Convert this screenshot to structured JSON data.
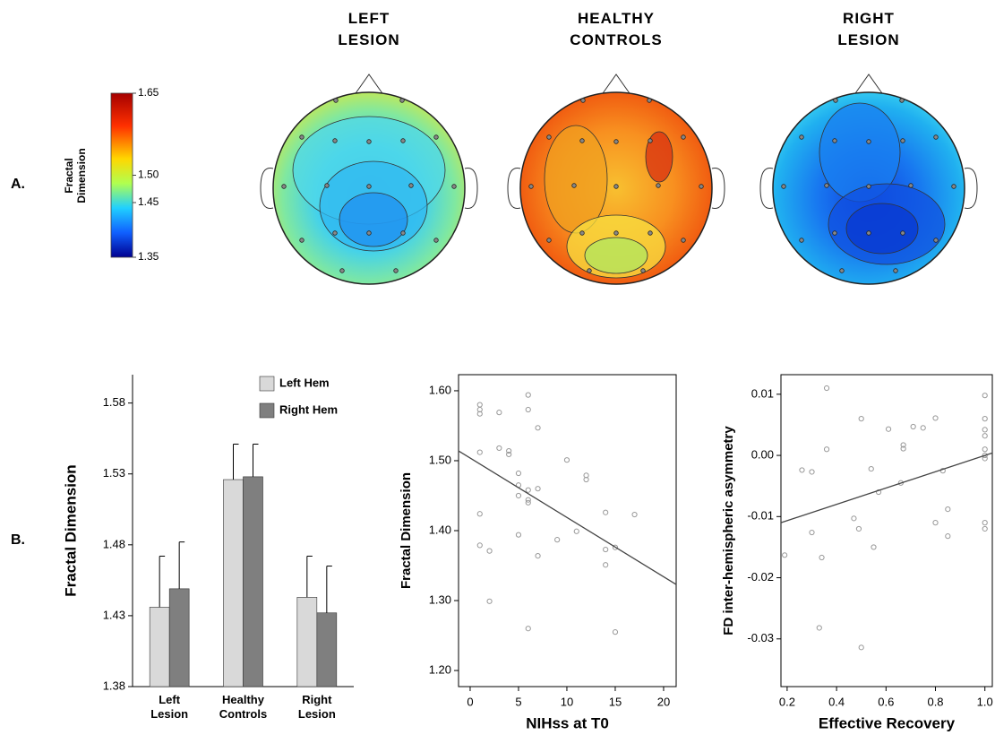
{
  "panel_labels": [
    "A.",
    "B."
  ],
  "topomaps": {
    "titles": [
      "LEFT LESION",
      "HEALTHY CONTROLS",
      "RIGHT LESION"
    ],
    "colorbar": {
      "label": "Fractal Dimension",
      "lim": [
        1.35,
        1.65
      ],
      "ticks": [
        1.65,
        {
          "value": 1.5,
          "label": "1.50"
        },
        1.45,
        1.35
      ]
    }
  },
  "chart_data": [
    {
      "type": "bar",
      "ylabel": "Fractal Dimension",
      "categories": [
        "Left Lesion",
        "Healthy Controls",
        "Right Lesion"
      ],
      "series": [
        {
          "name": "Left Hem",
          "color": "#d9d9d9",
          "values": [
            1.436,
            1.526,
            1.443
          ],
          "errors": [
            0.036,
            0.025,
            0.029
          ]
        },
        {
          "name": "Right Hem",
          "color": "#7f7f7f",
          "values": [
            1.449,
            1.528,
            1.432
          ],
          "errors": [
            0.033,
            0.023,
            0.033
          ]
        }
      ],
      "ylim": [
        1.38,
        1.6
      ],
      "yticks": [
        1.38,
        1.43,
        1.48,
        1.53,
        1.58
      ],
      "legend": "top-right"
    },
    {
      "type": "scatter",
      "xlabel": "NIHss at T0",
      "ylabel": "Fractal Dimension",
      "color": "#999999",
      "x": [
        1,
        1,
        1,
        3,
        6,
        6,
        7,
        4,
        4,
        1,
        3,
        5,
        5,
        5,
        6,
        6,
        7,
        6,
        10,
        12,
        12,
        1,
        1,
        2,
        2,
        5,
        7,
        9,
        11,
        14,
        17,
        14,
        14,
        15,
        6,
        15
      ],
      "y": [
        1.58,
        1.573,
        1.567,
        1.569,
        1.594,
        1.573,
        1.547,
        1.514,
        1.509,
        1.512,
        1.518,
        1.482,
        1.465,
        1.45,
        1.458,
        1.444,
        1.46,
        1.44,
        1.501,
        1.479,
        1.473,
        1.424,
        1.379,
        1.371,
        1.299,
        1.394,
        1.364,
        1.387,
        1.399,
        1.426,
        1.423,
        1.373,
        1.351,
        1.376,
        1.26,
        1.255
      ],
      "fit": {
        "x": [
          -1.2,
          21.3
        ],
        "y": [
          1.514,
          1.323
        ]
      },
      "xlim": [
        -1.2,
        21.3
      ],
      "xticks": [
        0,
        5,
        10,
        15,
        20
      ],
      "ylim": [
        1.177,
        1.623
      ],
      "yticks": [
        {
          "value": 1.2,
          "label": "1.20"
        },
        {
          "value": 1.3,
          "label": "1.30"
        },
        {
          "value": 1.4,
          "label": "1.40"
        },
        {
          "value": 1.5,
          "label": "1.50"
        },
        {
          "value": 1.6,
          "label": "1.60"
        }
      ]
    },
    {
      "type": "scatter",
      "xlabel": "Effective Recovery",
      "ylabel": "FD inter-hemispheric asymmetry",
      "color": "#999999",
      "x": [
        0.36,
        0.36,
        0.26,
        0.3,
        0.5,
        0.54,
        0.61,
        0.67,
        0.67,
        0.71,
        0.75,
        0.8,
        0.57,
        0.66,
        0.83,
        0.85,
        0.8,
        0.85,
        0.47,
        0.49,
        0.55,
        0.3,
        0.34,
        0.19,
        0.33,
        0.5,
        1.0,
        1.0,
        1.0,
        1.0,
        1.0,
        1.0,
        1.0,
        1.0,
        1.0
      ],
      "y": [
        0.011,
        0.001,
        -0.0024,
        -0.0027,
        0.006,
        -0.0022,
        0.0043,
        0.0017,
        0.0011,
        0.0047,
        0.0045,
        0.0061,
        -0.006,
        -0.0045,
        -0.0025,
        -0.0088,
        -0.011,
        -0.0132,
        -0.0103,
        -0.012,
        -0.015,
        -0.0126,
        -0.0167,
        -0.0163,
        -0.0282,
        -0.0314,
        0.0098,
        0.006,
        0.0042,
        0.0032,
        0.001,
        0.0,
        -0.0005,
        -0.011,
        -0.012
      ],
      "fit": {
        "x": [
          0.175,
          1.03
        ],
        "y": [
          -0.011,
          0.0004
        ]
      },
      "xlim": [
        0.175,
        1.03
      ],
      "xticks": [
        0.2,
        0.4,
        0.6,
        0.8,
        {
          "value": 1,
          "label": "1.0"
        }
      ],
      "ylim": [
        -0.0378,
        0.0132
      ],
      "yticks": [
        -0.03,
        -0.02,
        -0.01,
        {
          "value": 0,
          "label": "0.00"
        },
        0.01
      ]
    }
  ]
}
